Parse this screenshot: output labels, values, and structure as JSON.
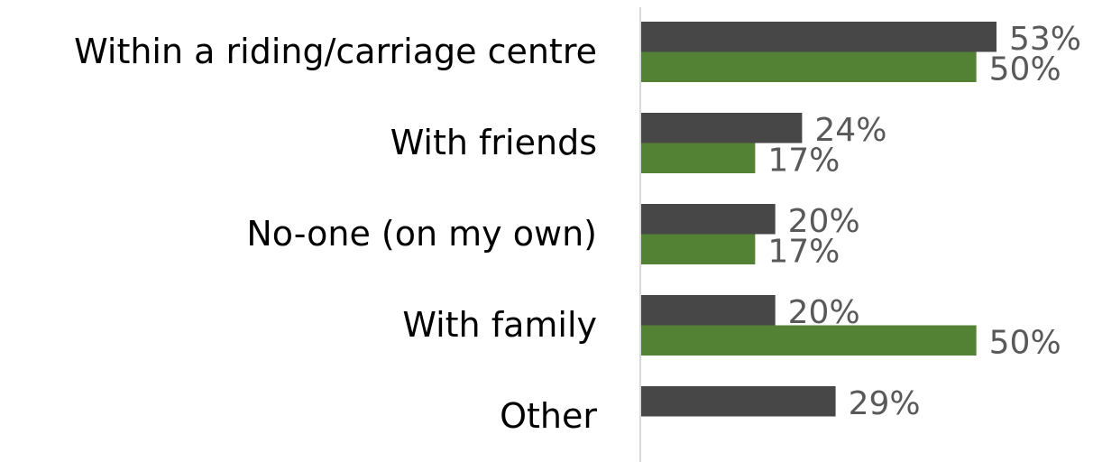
{
  "chart_data": {
    "type": "bar",
    "orientation": "horizontal",
    "categories": [
      "Within a riding/carriage centre",
      "With friends",
      "No-one (on my own)",
      "With family",
      "Other"
    ],
    "series": [
      {
        "color": "#474747",
        "values": [
          53,
          24,
          20,
          20,
          29
        ],
        "value_labels": [
          "53%",
          "24%",
          "20%",
          "20%",
          "29%"
        ]
      },
      {
        "color": "#548235",
        "values": [
          50,
          17,
          17,
          50,
          null
        ],
        "value_labels": [
          "50%",
          "17%",
          "17%",
          "50%",
          null
        ]
      }
    ],
    "xlim": [
      0,
      60
    ]
  }
}
